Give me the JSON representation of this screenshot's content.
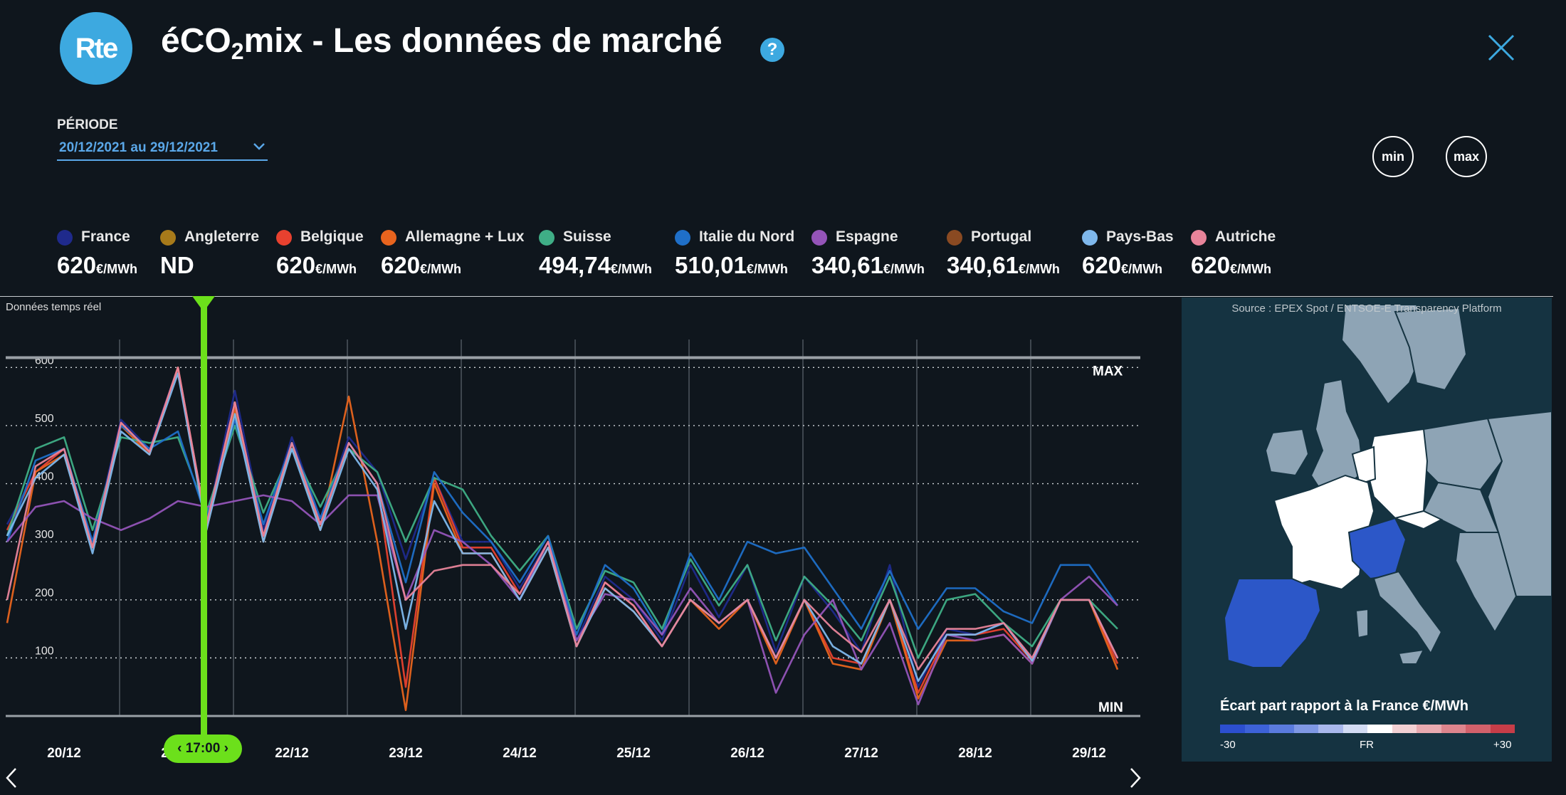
{
  "header": {
    "logo_text": "Rte",
    "title_pre": "éCO",
    "title_sub": "2",
    "title_post": "mix - Les données de marché",
    "help_label": "?",
    "close_icon": "close-icon"
  },
  "period": {
    "label": "PÉRIODE",
    "value": "20/12/2021 au 29/12/2021"
  },
  "buttons": {
    "min_label": "min",
    "max_label": "max"
  },
  "legend": [
    {
      "name": "France",
      "value": "620",
      "unit": "€/MWh",
      "color": "#1f2a8c"
    },
    {
      "name": "Angleterre",
      "value": "ND",
      "unit": "",
      "color": "#a77a1a"
    },
    {
      "name": "Belgique",
      "value": "620",
      "unit": "€/MWh",
      "color": "#e8412f"
    },
    {
      "name": "Allemagne + Lux",
      "value": "620",
      "unit": "€/MWh",
      "color": "#e8641e"
    },
    {
      "name": "Suisse",
      "value": "494,74",
      "unit": "€/MWh",
      "color": "#3fae86"
    },
    {
      "name": "Italie du Nord",
      "value": "510,01",
      "unit": "€/MWh",
      "color": "#1f6fc8"
    },
    {
      "name": "Espagne",
      "value": "340,61",
      "unit": "€/MWh",
      "color": "#9454b8"
    },
    {
      "name": "Portugal",
      "value": "340,61",
      "unit": "€/MWh",
      "color": "#8a4a22"
    },
    {
      "name": "Pays-Bas",
      "value": "620",
      "unit": "€/MWh",
      "color": "#7fb8ec"
    },
    {
      "name": "Autriche",
      "value": "620",
      "unit": "€/MWh",
      "color": "#e8849a"
    }
  ],
  "chart_note": "Données temps réel",
  "cursor_label": "17:00",
  "map": {
    "source": "Source : EPEX Spot / ENTSOE-E Transparency Platform",
    "scale_title": "Écart part rapport à la France €/MWh",
    "scale_min": "-30",
    "scale_mid": "FR",
    "scale_max": "+30",
    "scale_colors": [
      "#2c4fd0",
      "#3d62d8",
      "#5a7bde",
      "#7f98e4",
      "#a9b8ec",
      "#d3dcf4",
      "#ffffff",
      "#f2d1d4",
      "#e8aab0",
      "#dd858d",
      "#d2616b",
      "#c73d48"
    ]
  },
  "chart_data": {
    "type": "line",
    "title": "",
    "xlabel": "",
    "ylabel": "",
    "ylim": [
      0,
      620
    ],
    "yticks": [
      100,
      200,
      300,
      400,
      500,
      600
    ],
    "xticks": [
      "20/12",
      "21/12",
      "22/12",
      "23/12",
      "24/12",
      "25/12",
      "26/12",
      "27/12",
      "28/12",
      "29/12"
    ],
    "ref_lines": {
      "max_label": "MAX",
      "max_value": 617,
      "min_label": "MIN",
      "min_value": 0
    },
    "x": [
      0,
      0.25,
      0.5,
      0.75,
      1,
      1.25,
      1.5,
      1.75,
      2,
      2.25,
      2.5,
      2.75,
      3,
      3.25,
      3.5,
      3.75,
      4,
      4.25,
      4.5,
      4.75,
      5,
      5.25,
      5.5,
      5.75,
      6,
      6.25,
      6.5,
      6.75,
      7,
      7.25,
      7.5,
      7.75,
      8,
      8.25,
      8.5,
      8.75,
      9,
      9.25,
      9.5,
      9.75
    ],
    "series": [
      {
        "name": "France",
        "values": [
          330,
          420,
          460,
          300,
          510,
          460,
          600,
          330,
          560,
          320,
          480,
          340,
          480,
          420,
          270,
          410,
          300,
          300,
          220,
          300,
          130,
          240,
          200,
          130,
          260,
          170,
          260,
          110,
          240,
          180,
          110,
          260,
          50,
          150,
          140,
          160,
          100,
          200,
          200,
          100
        ]
      },
      {
        "name": "Belgique",
        "values": [
          320,
          420,
          460,
          290,
          505,
          455,
          600,
          330,
          540,
          310,
          470,
          330,
          470,
          400,
          50,
          410,
          290,
          290,
          210,
          300,
          120,
          230,
          190,
          120,
          200,
          160,
          200,
          100,
          200,
          100,
          90,
          200,
          40,
          140,
          140,
          150,
          95,
          200,
          200,
          90
        ]
      },
      {
        "name": "Allemagne + Lux",
        "values": [
          160,
          420,
          450,
          290,
          500,
          450,
          600,
          320,
          530,
          300,
          470,
          320,
          550,
          300,
          10,
          400,
          280,
          280,
          200,
          290,
          120,
          220,
          180,
          120,
          200,
          150,
          200,
          90,
          200,
          90,
          80,
          200,
          30,
          130,
          130,
          140,
          90,
          200,
          200,
          80
        ]
      },
      {
        "name": "Suisse",
        "values": [
          310,
          460,
          480,
          320,
          480,
          470,
          480,
          350,
          500,
          350,
          460,
          360,
          460,
          420,
          300,
          410,
          390,
          310,
          250,
          310,
          150,
          250,
          230,
          150,
          270,
          190,
          260,
          130,
          240,
          190,
          130,
          240,
          100,
          200,
          210,
          160,
          120,
          200,
          200,
          150
        ]
      },
      {
        "name": "Italie du Nord",
        "values": [
          300,
          440,
          460,
          300,
          500,
          460,
          490,
          340,
          510,
          330,
          470,
          340,
          470,
          400,
          230,
          420,
          350,
          300,
          230,
          310,
          140,
          260,
          220,
          140,
          280,
          200,
          300,
          280,
          290,
          220,
          150,
          250,
          150,
          220,
          220,
          180,
          160,
          260,
          260,
          190
        ]
      },
      {
        "name": "Espagne",
        "values": [
          300,
          360,
          370,
          340,
          320,
          340,
          370,
          360,
          370,
          380,
          370,
          330,
          380,
          380,
          200,
          320,
          300,
          260,
          200,
          300,
          130,
          210,
          200,
          140,
          220,
          160,
          200,
          40,
          140,
          200,
          80,
          160,
          20,
          140,
          130,
          140,
          90,
          200,
          240,
          190
        ]
      },
      {
        "name": "Pays-Bas",
        "values": [
          310,
          410,
          450,
          280,
          490,
          450,
          590,
          320,
          520,
          300,
          460,
          320,
          460,
          390,
          150,
          370,
          280,
          280,
          200,
          290,
          120,
          220,
          180,
          120,
          200,
          160,
          200,
          100,
          200,
          120,
          90,
          200,
          60,
          140,
          140,
          160,
          95,
          200,
          200,
          100
        ]
      },
      {
        "name": "Autriche",
        "values": [
          200,
          430,
          460,
          290,
          505,
          455,
          600,
          330,
          540,
          310,
          470,
          330,
          470,
          400,
          200,
          250,
          260,
          260,
          210,
          300,
          120,
          230,
          190,
          120,
          200,
          160,
          200,
          100,
          200,
          150,
          110,
          200,
          80,
          150,
          150,
          160,
          100,
          200,
          200,
          100
        ]
      }
    ]
  }
}
